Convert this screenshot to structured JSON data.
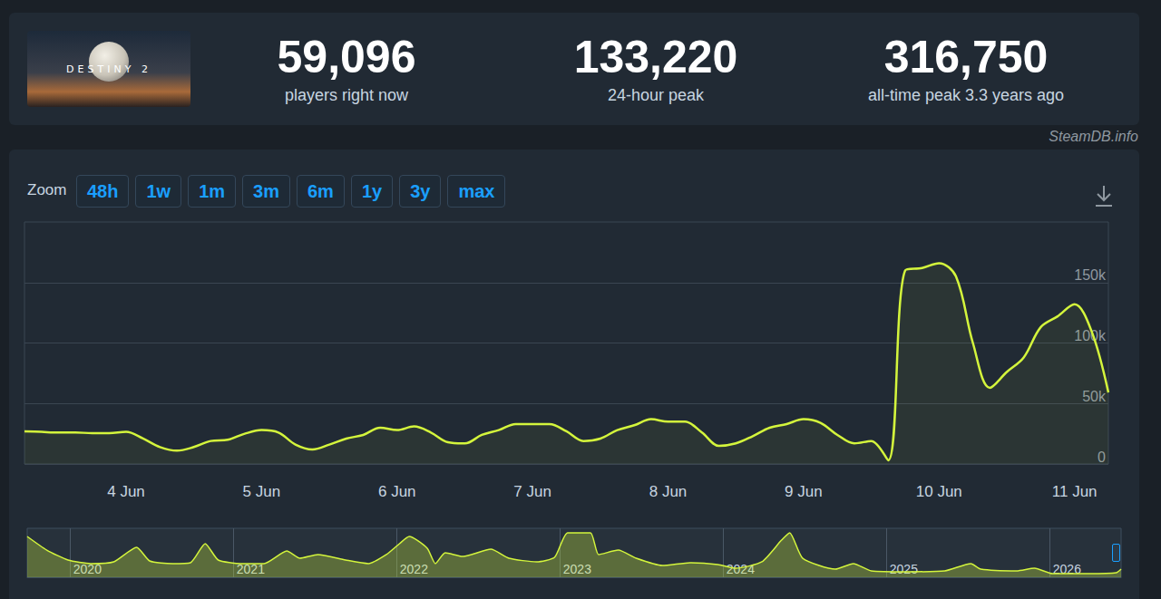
{
  "header": {
    "logo_text": "DESTINY 2",
    "stats": [
      {
        "value": "59,096",
        "label": "players right now"
      },
      {
        "value": "133,220",
        "label": "24-hour peak"
      },
      {
        "value": "316,750",
        "label": "all-time peak 3.3 years ago"
      }
    ],
    "source": "SteamDB.info"
  },
  "zoom": {
    "label": "Zoom",
    "buttons": [
      "48h",
      "1w",
      "1m",
      "3m",
      "6m",
      "1y",
      "3y",
      "max"
    ]
  },
  "chart_data": [
    {
      "type": "line",
      "categories": [
        null,
        null,
        null,
        null,
        null,
        null,
        "4 Jun",
        null,
        null,
        null,
        null,
        null,
        null,
        null,
        "5 Jun",
        null,
        null,
        null,
        null,
        null,
        null,
        null,
        "6 Jun",
        null,
        null,
        null,
        null,
        null,
        null,
        null,
        "7 Jun",
        null,
        null,
        null,
        null,
        null,
        null,
        null,
        "8 Jun",
        null,
        null,
        null,
        null,
        null,
        null,
        null,
        "9 Jun",
        null,
        null,
        null,
        null,
        null,
        null,
        null,
        "10 Jun",
        null,
        null,
        null,
        null,
        null,
        null,
        null,
        "11 Jun",
        null,
        null
      ],
      "values": [
        27000,
        26500,
        26000,
        26000,
        25500,
        25500,
        26500,
        21000,
        14000,
        11000,
        14000,
        19000,
        20000,
        25000,
        28000,
        26000,
        16000,
        12000,
        16000,
        21000,
        24000,
        30000,
        28000,
        31000,
        26000,
        18000,
        17000,
        24000,
        28000,
        33000,
        33000,
        33000,
        27000,
        19000,
        21000,
        28000,
        32000,
        37000,
        35000,
        35000,
        26000,
        15000,
        17000,
        23000,
        30000,
        33000,
        37000,
        34000,
        24000,
        17000,
        19000,
        3000,
        160000,
        162000,
        166000,
        155000,
        100000,
        63000,
        76000,
        88000,
        113000,
        122000,
        132000,
        110000,
        59096
      ],
      "color": "#d4f53c",
      "ylim": [
        0,
        200000
      ],
      "yticks": [
        0,
        {
          "value": 50000,
          "label": "50k"
        },
        {
          "value": 100000,
          "label": "100k"
        },
        {
          "value": 150000,
          "label": "150k"
        }
      ],
      "grid": true
    },
    {
      "type": "area",
      "x": [
        2019.74,
        2019.86,
        2019.99,
        2020.13,
        2020.27,
        2020.41,
        2020.49,
        2020.63,
        2020.74,
        2020.83,
        2020.91,
        2021.05,
        2021.19,
        2021.33,
        2021.41,
        2021.52,
        2021.69,
        2021.83,
        2021.94,
        2022.02,
        2022.08,
        2022.19,
        2022.24,
        2022.3,
        2022.41,
        2022.58,
        2022.69,
        2022.86,
        2022.97,
        2023.05,
        2023.19,
        2023.24,
        2023.36,
        2023.47,
        2023.63,
        2023.8,
        2023.97,
        2024.08,
        2024.24,
        2024.36,
        2024.41,
        2024.49,
        2024.69,
        2024.8,
        2024.91,
        2025.13,
        2025.36,
        2025.52,
        2025.58,
        2025.8,
        2025.91,
        2026.02,
        2026.24,
        2026.41,
        2026.44
      ],
      "values": [
        275000,
        183000,
        116000,
        92000,
        104000,
        202000,
        110000,
        92000,
        98000,
        226000,
        116000,
        92000,
        92000,
        177000,
        128000,
        153000,
        116000,
        92000,
        153000,
        226000,
        275000,
        196000,
        92000,
        165000,
        140000,
        189000,
        128000,
        104000,
        134000,
        300000,
        300000,
        153000,
        183000,
        128000,
        79000,
        98000,
        86000,
        61000,
        104000,
        250000,
        300000,
        128000,
        55000,
        92000,
        43000,
        37000,
        43000,
        92000,
        55000,
        43000,
        61000,
        24000,
        24000,
        30000,
        55000
      ],
      "color": "#d4f53c",
      "xlim": [
        2019.74,
        2026.44
      ],
      "xticks": [
        2020,
        2021,
        2022,
        2023,
        2024,
        2025,
        2026
      ],
      "ylim": [
        0,
        330000
      ],
      "tick_labels": "x",
      "grid": true
    }
  ]
}
